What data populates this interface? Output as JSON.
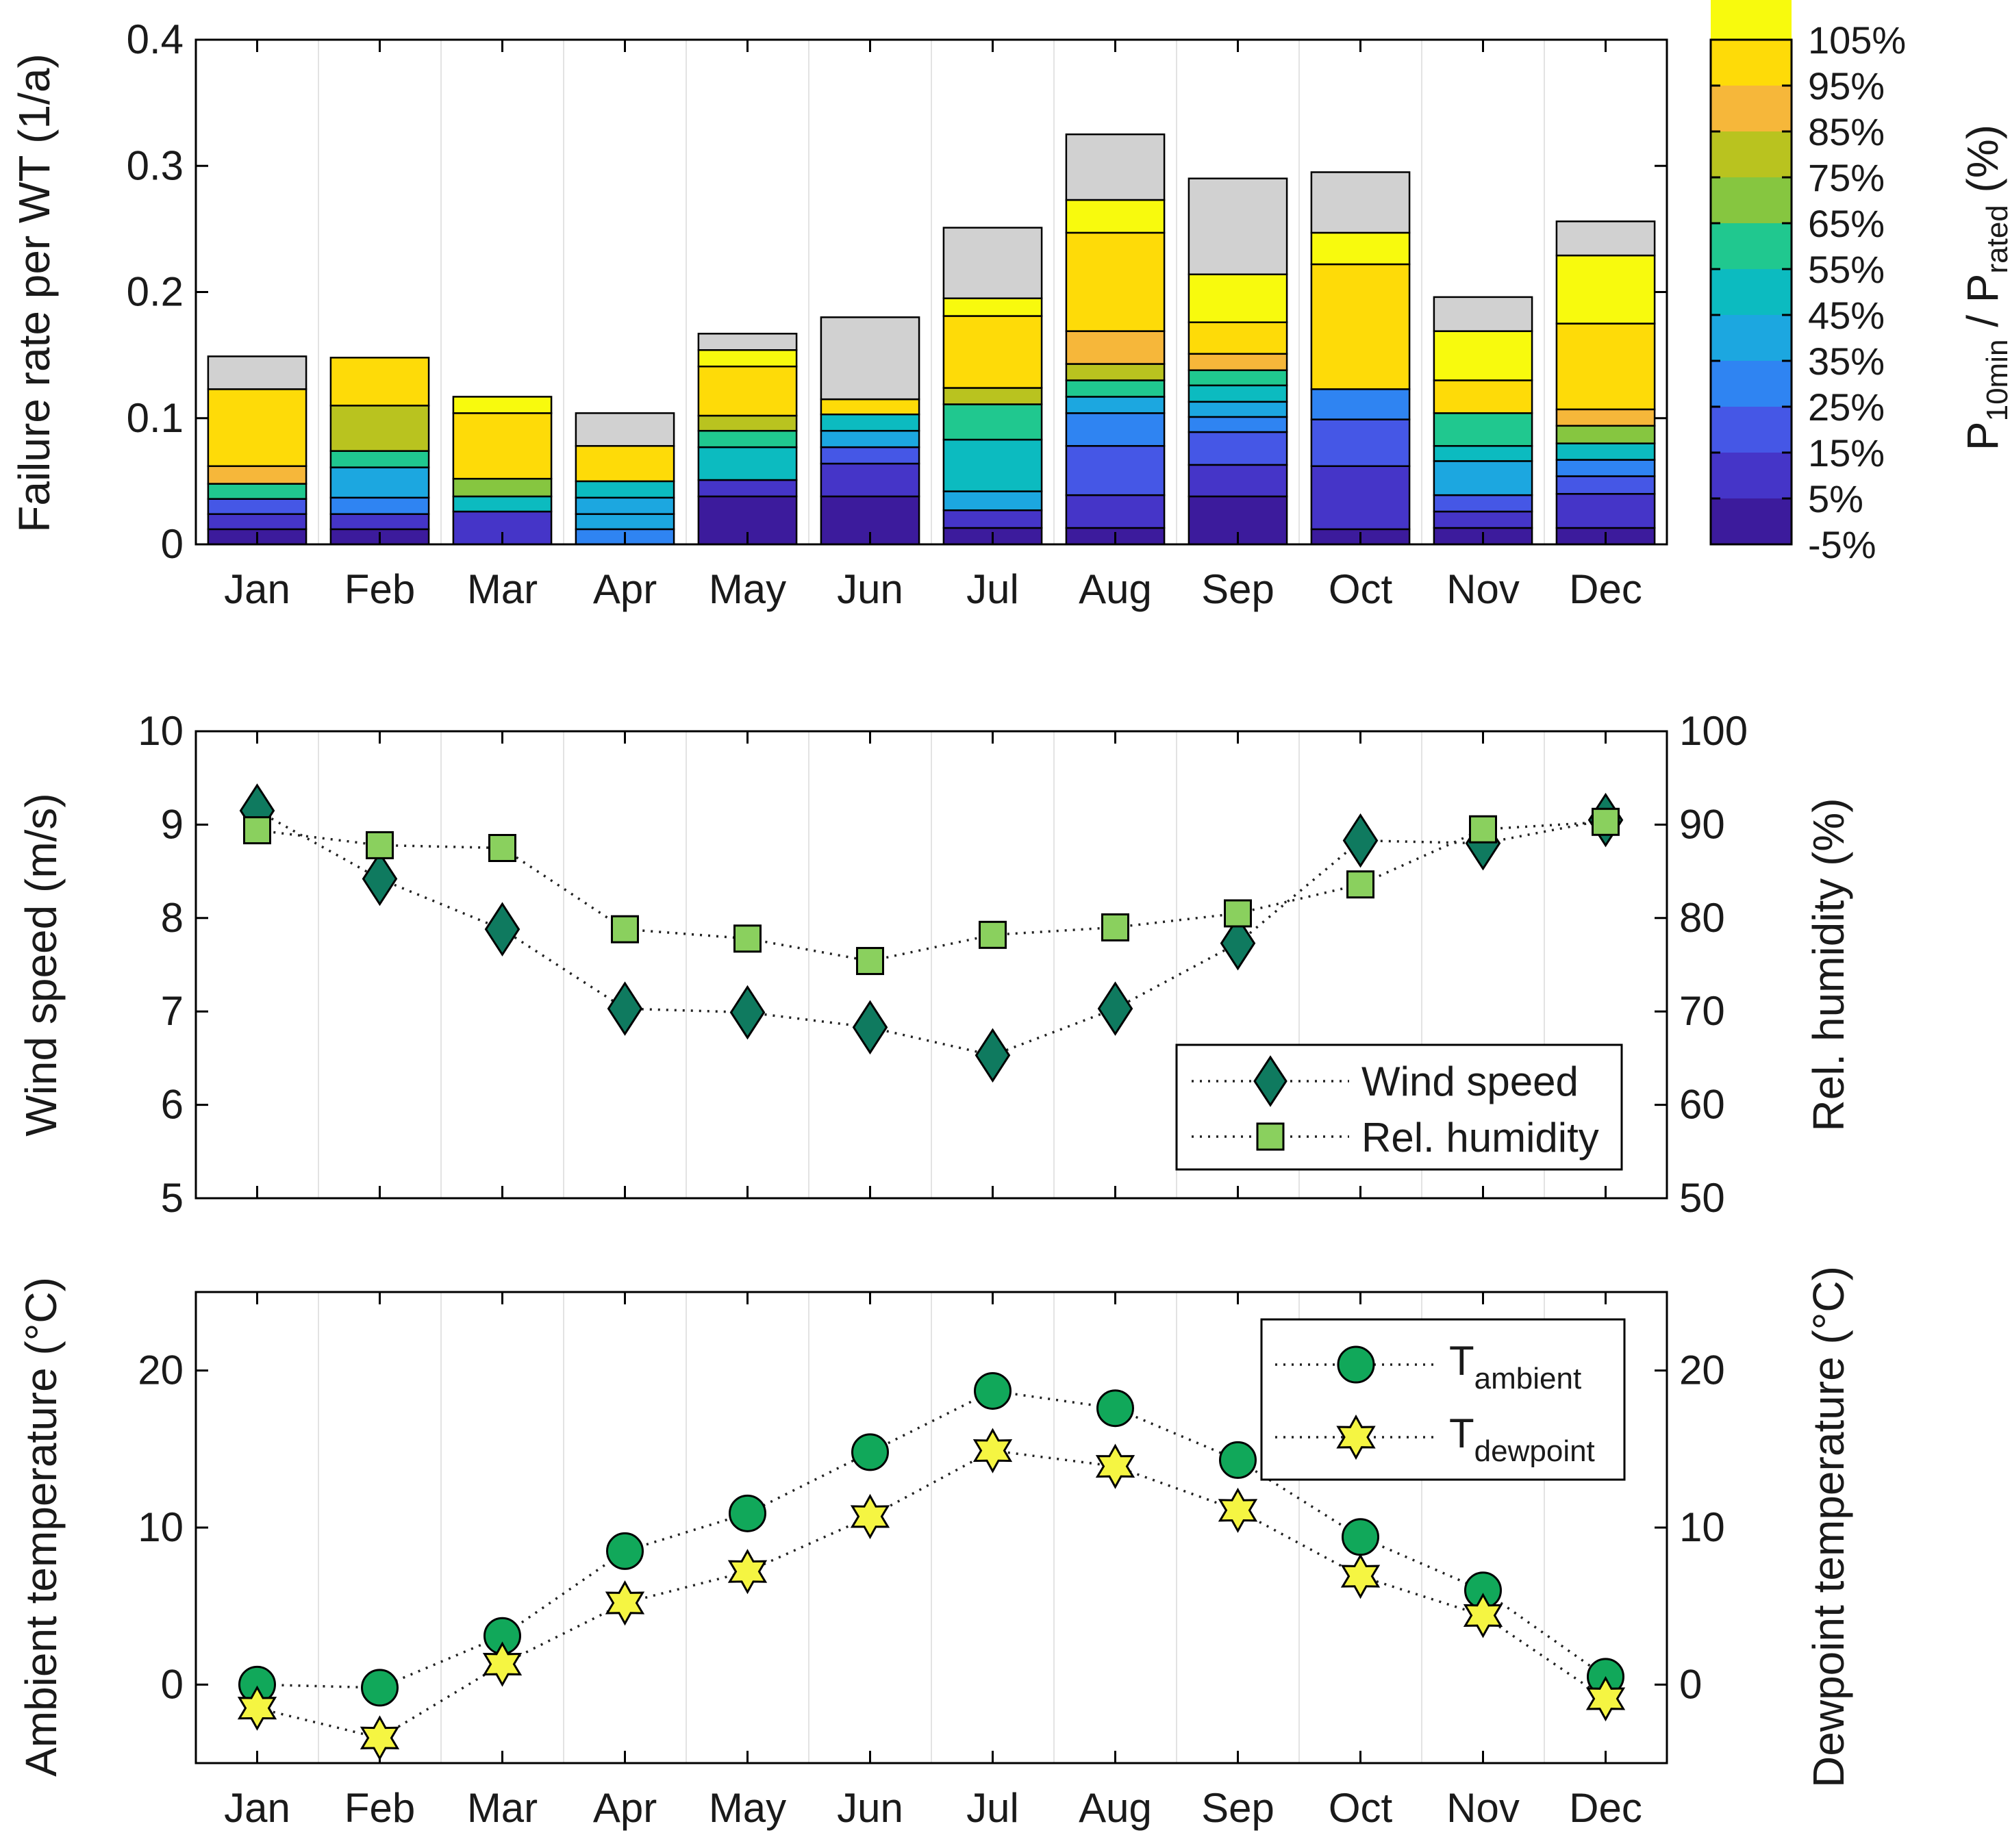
{
  "colors": {
    "grey": "#d1d1d1",
    "bins": [
      "#3c1b9c",
      "#4535c8",
      "#4557e6",
      "#2f84f2",
      "#1ca7e0",
      "#0cbbc0",
      "#20c88f",
      "#86c640",
      "#b9c31f",
      "#f6b73a",
      "#fedb08",
      "#f8fa0d"
    ]
  },
  "chart_data": [
    {
      "type": "bar",
      "stacked": true,
      "title": "",
      "ylabel": "Failure rate per WT (1/a)",
      "ylim": [
        0,
        0.4
      ],
      "yticks": [
        "0",
        "0.1",
        "0.2",
        "0.3",
        "0.4"
      ],
      "categories": [
        "Jan",
        "Feb",
        "Mar",
        "Apr",
        "May",
        "Jun",
        "Jul",
        "Aug",
        "Sep",
        "Oct",
        "Nov",
        "Dec"
      ],
      "stacks": [
        [
          [
            0.012,
            0
          ],
          [
            0.024,
            1
          ],
          [
            0.036,
            2
          ],
          [
            0.048,
            6
          ],
          [
            0.062,
            9
          ],
          [
            0.123,
            10
          ],
          [
            0.149,
            "grey"
          ]
        ],
        [
          [
            0.012,
            0
          ],
          [
            0.024,
            1
          ],
          [
            0.037,
            3
          ],
          [
            0.061,
            4
          ],
          [
            0.074,
            6
          ],
          [
            0.11,
            8
          ],
          [
            0.148,
            10
          ]
        ],
        [
          [
            0.026,
            1
          ],
          [
            0.038,
            5
          ],
          [
            0.052,
            7
          ],
          [
            0.104,
            10
          ],
          [
            0.117,
            11
          ]
        ],
        [
          [
            0.012,
            3
          ],
          [
            0.024,
            4
          ],
          [
            0.037,
            4
          ],
          [
            0.05,
            5
          ],
          [
            0.078,
            10
          ],
          [
            0.104,
            "grey"
          ]
        ],
        [
          [
            0.038,
            0
          ],
          [
            0.051,
            1
          ],
          [
            0.077,
            5
          ],
          [
            0.09,
            6
          ],
          [
            0.102,
            8
          ],
          [
            0.141,
            10
          ],
          [
            0.154,
            11
          ],
          [
            0.167,
            "grey"
          ]
        ],
        [
          [
            0.038,
            0
          ],
          [
            0.064,
            1
          ],
          [
            0.077,
            2
          ],
          [
            0.09,
            4
          ],
          [
            0.103,
            5
          ],
          [
            0.115,
            10
          ],
          [
            0.18,
            "grey"
          ]
        ],
        [
          [
            0.013,
            0
          ],
          [
            0.027,
            1
          ],
          [
            0.042,
            4
          ],
          [
            0.083,
            5
          ],
          [
            0.111,
            6
          ],
          [
            0.124,
            8
          ],
          [
            0.181,
            10
          ],
          [
            0.195,
            11
          ],
          [
            0.251,
            "grey"
          ]
        ],
        [
          [
            0.013,
            0
          ],
          [
            0.039,
            1
          ],
          [
            0.078,
            2
          ],
          [
            0.104,
            3
          ],
          [
            0.117,
            4
          ],
          [
            0.13,
            6
          ],
          [
            0.143,
            8
          ],
          [
            0.169,
            9
          ],
          [
            0.247,
            10
          ],
          [
            0.273,
            11
          ],
          [
            0.325,
            "grey"
          ]
        ],
        [
          [
            0.038,
            0
          ],
          [
            0.063,
            1
          ],
          [
            0.089,
            2
          ],
          [
            0.101,
            3
          ],
          [
            0.113,
            4
          ],
          [
            0.126,
            5
          ],
          [
            0.138,
            6
          ],
          [
            0.151,
            9
          ],
          [
            0.176,
            10
          ],
          [
            0.214,
            11
          ],
          [
            0.29,
            "grey"
          ]
        ],
        [
          [
            0.012,
            0
          ],
          [
            0.062,
            1
          ],
          [
            0.099,
            2
          ],
          [
            0.123,
            3
          ],
          [
            0.222,
            10
          ],
          [
            0.247,
            11
          ],
          [
            0.295,
            "grey"
          ]
        ],
        [
          [
            0.013,
            0
          ],
          [
            0.026,
            1
          ],
          [
            0.039,
            2
          ],
          [
            0.066,
            4
          ],
          [
            0.078,
            5
          ],
          [
            0.104,
            6
          ],
          [
            0.13,
            10
          ],
          [
            0.169,
            11
          ],
          [
            0.196,
            "grey"
          ]
        ],
        [
          [
            0.013,
            0
          ],
          [
            0.04,
            1
          ],
          [
            0.054,
            2
          ],
          [
            0.067,
            3
          ],
          [
            0.08,
            5
          ],
          [
            0.094,
            7
          ],
          [
            0.107,
            9
          ],
          [
            0.175,
            10
          ],
          [
            0.229,
            11
          ],
          [
            0.256,
            "grey"
          ]
        ]
      ],
      "colorbar": {
        "label_main": "P",
        "label_sub1": "10min",
        "label_mid": " / P",
        "label_sub2": "rated",
        "label_end": " (%)",
        "range": [
          -5,
          105
        ],
        "ticks": [
          "-5%",
          "5%",
          "15%",
          "25%",
          "35%",
          "45%",
          "55%",
          "65%",
          "75%",
          "85%",
          "95%",
          "105%"
        ]
      }
    },
    {
      "type": "line",
      "categories": [
        "Jan",
        "Feb",
        "Mar",
        "Apr",
        "May",
        "Jun",
        "Jul",
        "Aug",
        "Sep",
        "Oct",
        "Nov",
        "Dec"
      ],
      "ylabel_left": "Wind speed (m/s)",
      "ylabel_right": "Rel. humidity (%)",
      "ylim_left": [
        5,
        10
      ],
      "ylim_right": [
        50,
        100
      ],
      "yticks_left": [
        "5",
        "6",
        "7",
        "8",
        "9",
        "10"
      ],
      "yticks_right": [
        "50",
        "60",
        "70",
        "80",
        "90",
        "100"
      ],
      "series": [
        {
          "name": "Wind speed",
          "axis": "left",
          "marker": "diamond",
          "color": "#0f7a5f",
          "values": [
            9.15,
            8.42,
            7.88,
            7.03,
            6.99,
            6.83,
            6.53,
            7.03,
            7.73,
            8.83,
            8.8,
            9.05
          ]
        },
        {
          "name": "Rel. humidity",
          "axis": "right",
          "marker": "square",
          "color": "#8ad05e",
          "values": [
            89.4,
            87.8,
            87.5,
            78.8,
            77.8,
            75.4,
            78.2,
            79.0,
            80.5,
            83.6,
            89.5,
            90.3
          ]
        }
      ],
      "legend": "bottom-right"
    },
    {
      "type": "line",
      "categories": [
        "Jan",
        "Feb",
        "Mar",
        "Apr",
        "May",
        "Jun",
        "Jul",
        "Aug",
        "Sep",
        "Oct",
        "Nov",
        "Dec"
      ],
      "ylabel_left": "Ambient temperature (°C)",
      "ylabel_right": "Dewpoint temperature (°C)",
      "ylim": [
        -5,
        25
      ],
      "yticks": [
        "0",
        "10",
        "20"
      ],
      "series": [
        {
          "name_main": "T",
          "name_sub": "ambient",
          "marker": "circle",
          "color": "#11a85a",
          "values": [
            0.0,
            -0.2,
            3.1,
            8.5,
            10.9,
            14.8,
            18.7,
            17.6,
            14.3,
            9.4,
            6.0,
            0.5
          ]
        },
        {
          "name_main": "T",
          "name_sub": "dewpoint",
          "marker": "star",
          "color": "#f5f542",
          "values": [
            -1.5,
            -3.4,
            1.3,
            5.2,
            7.2,
            10.7,
            14.9,
            13.9,
            11.1,
            6.9,
            4.4,
            -0.9
          ]
        }
      ],
      "legend": "top-right"
    }
  ]
}
